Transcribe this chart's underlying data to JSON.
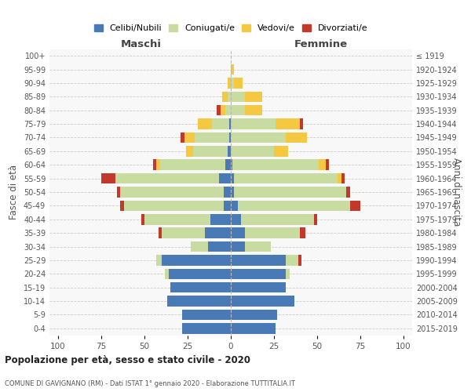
{
  "age_groups": [
    "0-4",
    "5-9",
    "10-14",
    "15-19",
    "20-24",
    "25-29",
    "30-34",
    "35-39",
    "40-44",
    "45-49",
    "50-54",
    "55-59",
    "60-64",
    "65-69",
    "70-74",
    "75-79",
    "80-84",
    "85-89",
    "90-94",
    "95-99",
    "100+"
  ],
  "birth_years": [
    "2015-2019",
    "2010-2014",
    "2005-2009",
    "2000-2004",
    "1995-1999",
    "1990-1994",
    "1985-1989",
    "1980-1984",
    "1975-1979",
    "1970-1974",
    "1965-1969",
    "1960-1964",
    "1955-1959",
    "1950-1954",
    "1945-1949",
    "1940-1944",
    "1935-1939",
    "1930-1934",
    "1925-1929",
    "1920-1924",
    "≤ 1919"
  ],
  "colors": {
    "celibe": "#4a7ab5",
    "coniugato": "#c8dba0",
    "vedovo": "#f5c842",
    "divorziato": "#c0392b"
  },
  "maschi": {
    "celibe": [
      28,
      28,
      37,
      35,
      36,
      40,
      13,
      15,
      12,
      4,
      4,
      7,
      3,
      2,
      1,
      1,
      0,
      0,
      0,
      0,
      0
    ],
    "coniugato": [
      0,
      0,
      0,
      0,
      2,
      3,
      10,
      25,
      38,
      58,
      60,
      60,
      38,
      20,
      20,
      10,
      3,
      2,
      0,
      0,
      0
    ],
    "vedovo": [
      0,
      0,
      0,
      0,
      0,
      0,
      0,
      0,
      0,
      0,
      0,
      0,
      2,
      4,
      6,
      8,
      3,
      3,
      2,
      0,
      0
    ],
    "divorziato": [
      0,
      0,
      0,
      0,
      0,
      0,
      0,
      2,
      2,
      2,
      2,
      8,
      2,
      0,
      2,
      0,
      2,
      0,
      0,
      0,
      0
    ]
  },
  "femmine": {
    "celibe": [
      26,
      27,
      37,
      32,
      32,
      32,
      8,
      8,
      6,
      4,
      2,
      2,
      1,
      0,
      0,
      0,
      0,
      0,
      0,
      0,
      0
    ],
    "coniugato": [
      0,
      0,
      0,
      0,
      2,
      7,
      15,
      32,
      42,
      65,
      65,
      60,
      50,
      25,
      32,
      26,
      8,
      8,
      2,
      0,
      0
    ],
    "vedovo": [
      0,
      0,
      0,
      0,
      0,
      0,
      0,
      0,
      0,
      0,
      0,
      2,
      4,
      8,
      12,
      14,
      10,
      10,
      5,
      2,
      0
    ],
    "divorziato": [
      0,
      0,
      0,
      0,
      0,
      2,
      0,
      3,
      2,
      6,
      2,
      2,
      2,
      0,
      0,
      2,
      0,
      0,
      0,
      0,
      0
    ]
  },
  "xlim": 105,
  "title": "Popolazione per età, sesso e stato civile - 2020",
  "subtitle": "COMUNE DI GAVIGNANO (RM) - Dati ISTAT 1° gennaio 2020 - Elaborazione TUTTITALIA.IT",
  "ylabel_left": "Fasce di età",
  "ylabel_right": "Anni di nascita"
}
